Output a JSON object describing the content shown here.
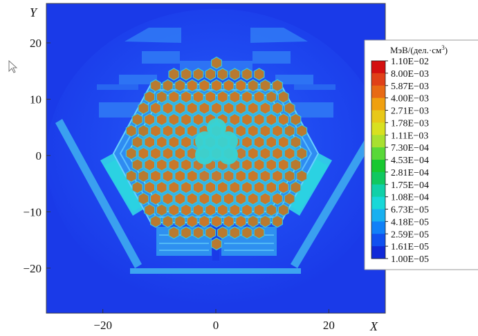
{
  "chart_data": {
    "type": "heatmap",
    "xlabel": "X",
    "ylabel": "Y",
    "xlim": [
      -30,
      30
    ],
    "ylim": [
      -28,
      27
    ],
    "x_ticks": [
      -20,
      0,
      20
    ],
    "y_ticks": [
      20,
      10,
      0,
      -10,
      -20
    ],
    "x_tick_labels": [
      "−20",
      "0",
      "20"
    ],
    "y_tick_labels": [
      "20",
      "10",
      "0",
      "−10",
      "−20"
    ],
    "colorbar": {
      "title": "МэВ/(дел.·см",
      "title_sup": "3",
      "title_close": ")",
      "scale": "log",
      "labels": [
        "1.10E−02",
        "8.00E−03",
        "5.87E−03",
        "4.00E−03",
        "2.71E−03",
        "1.78E−03",
        "1.11E−03",
        "7.30E−04",
        "4.53E−04",
        "2.81E−04",
        "1.75E−04",
        "1.08E−04",
        "6.73E−05",
        "4.18E−05",
        "2.59E−05",
        "1.61E−05",
        "1.00E−05"
      ],
      "colors": [
        "#d41010",
        "#e04018",
        "#e86a14",
        "#f0a010",
        "#e8c818",
        "#d8e020",
        "#a8e030",
        "#58d838",
        "#18c830",
        "#10c860",
        "#10d0a8",
        "#18d8d8",
        "#18b0f0",
        "#1080f8",
        "#1050f0",
        "#1028d8",
        "#0814a8"
      ]
    },
    "regions": [
      {
        "name": "background",
        "value": 1.61e-05,
        "color": "#1a3ff0"
      },
      {
        "name": "core-hexagon",
        "value": 4.18e-05,
        "color": "#2fa8f0"
      },
      {
        "name": "fuel-assemblies",
        "value": 0.004,
        "color": "#c8782a"
      },
      {
        "name": "central-region",
        "value": 6.73e-05,
        "color": "#37d6d6"
      },
      {
        "name": "reflector-blocks",
        "value": 4.18e-05,
        "color": "#2a90f0"
      }
    ]
  },
  "icons": {
    "cursor": "cursor-arrow-icon"
  }
}
